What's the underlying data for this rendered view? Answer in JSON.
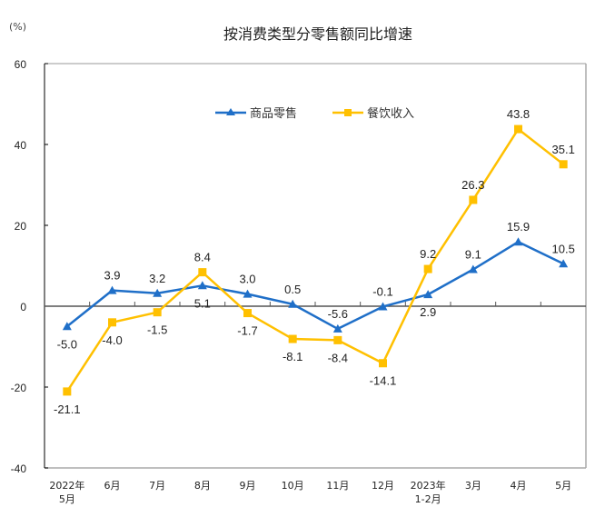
{
  "chart_data": {
    "type": "line",
    "title": "按消费类型分零售额同比增速",
    "ylabel": "(%)",
    "xlabel": "",
    "ylim": [
      -40,
      60
    ],
    "yticks": [
      60,
      40,
      20,
      0,
      -20,
      -40
    ],
    "grid": false,
    "legend_position": "top-center",
    "categories": [
      [
        "2022年",
        "5月"
      ],
      [
        "6月"
      ],
      [
        "7月"
      ],
      [
        "8月"
      ],
      [
        "9月"
      ],
      [
        "10月"
      ],
      [
        "11月"
      ],
      [
        "12月"
      ],
      [
        "2023年",
        "1-2月"
      ],
      [
        "3月"
      ],
      [
        "4月"
      ],
      [
        "5月"
      ]
    ],
    "series": [
      {
        "name": "商品零售",
        "color": "#1F6FC8",
        "marker": "triangle",
        "values": [
          -5.0,
          3.9,
          3.2,
          5.1,
          3.0,
          0.5,
          -5.6,
          -0.1,
          2.9,
          9.1,
          15.9,
          10.5
        ],
        "labels": [
          "-5.0",
          "3.9",
          "3.2",
          "5.1",
          "3.0",
          "0.5",
          "-5.6",
          "-0.1",
          "2.9",
          "9.1",
          "15.9",
          "10.5"
        ],
        "label_side": [
          "below",
          "above",
          "above",
          "below",
          "above",
          "above",
          "above",
          "above",
          "below",
          "above",
          "above",
          "above"
        ]
      },
      {
        "name": "餐饮收入",
        "color": "#FFC000",
        "marker": "square",
        "values": [
          -21.1,
          -4.0,
          -1.5,
          8.4,
          -1.7,
          -8.1,
          -8.4,
          -14.1,
          9.2,
          26.3,
          43.8,
          35.1
        ],
        "labels": [
          "-21.1",
          "-4.0",
          "-1.5",
          "8.4",
          "-1.7",
          "-8.1",
          "-8.4",
          "-14.1",
          "9.2",
          "26.3",
          "43.8",
          "35.1"
        ],
        "label_side": [
          "below",
          "below",
          "below",
          "above",
          "below",
          "below",
          "below",
          "below",
          "above",
          "above",
          "above",
          "above"
        ]
      }
    ]
  }
}
